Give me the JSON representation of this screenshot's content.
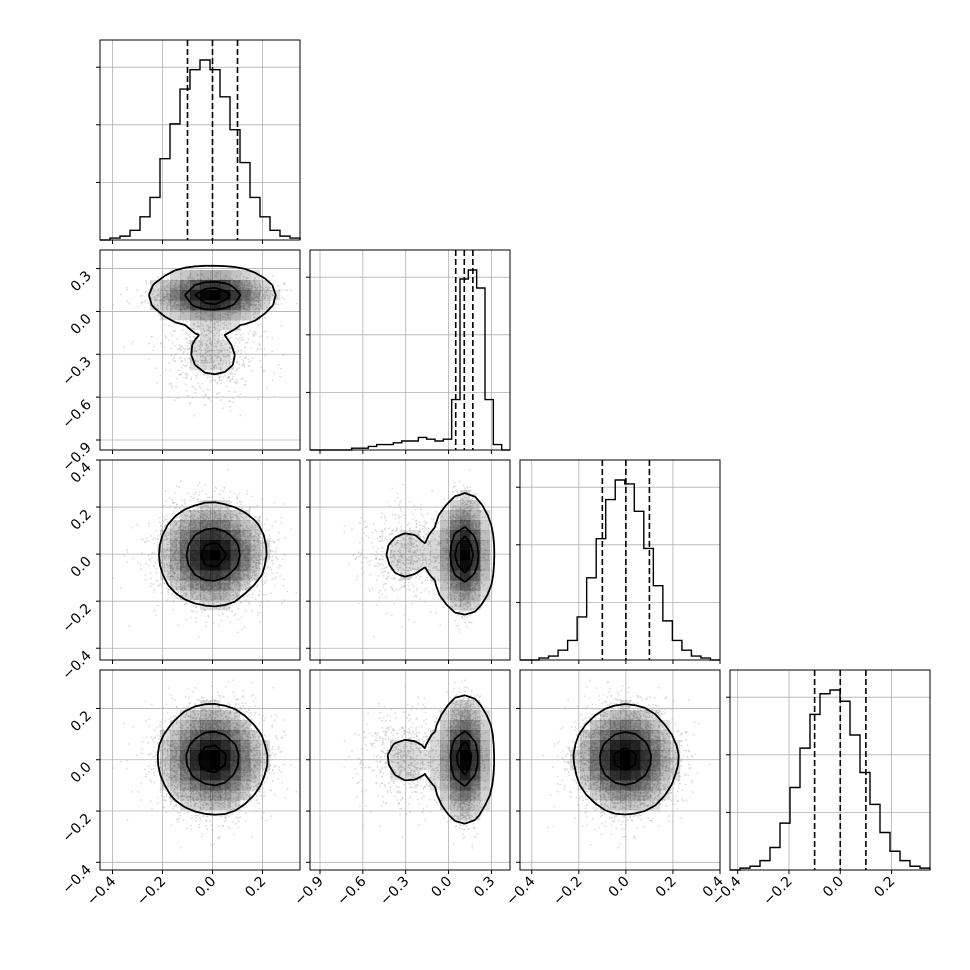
{
  "chart_data": {
    "type": "corner",
    "n_params": 4,
    "colors": {
      "line": "#000000",
      "scatter": "#bdbdbd",
      "density": "#000000",
      "grid": "#b0b0b0"
    },
    "grid": true,
    "axis_ranges": [
      [
        -0.45,
        0.35
      ],
      [
        -0.97,
        0.43
      ],
      [
        -0.45,
        0.4
      ],
      [
        -0.43,
        0.35
      ]
    ],
    "tick_labels": [
      [
        "−0.4",
        "−0.2",
        "0.0",
        "0.2"
      ],
      [
        "−0.9",
        "−0.6",
        "−0.3",
        "0.0",
        "0.3"
      ],
      [
        "−0.4",
        "−0.2",
        "0.0",
        "0.2",
        "0.4"
      ],
      [
        "−0.4",
        "−0.2",
        "0.0",
        "0.2"
      ]
    ],
    "tick_values": [
      [
        -0.4,
        -0.2,
        0.0,
        0.2
      ],
      [
        -0.9,
        -0.6,
        -0.3,
        0.0,
        0.3
      ],
      [
        -0.4,
        -0.2,
        0.0,
        0.2,
        0.4
      ],
      [
        -0.4,
        -0.2,
        0.0,
        0.2
      ]
    ],
    "quantiles": [
      [
        -0.1,
        0.0,
        0.1
      ],
      [
        0.05,
        0.11,
        0.17
      ],
      [
        -0.1,
        0.0,
        0.1
      ],
      [
        -0.1,
        0.0,
        0.1
      ]
    ],
    "histograms": [
      {
        "bins_min": -0.45,
        "bins_max": 0.35,
        "counts": [
          0.0,
          0.01,
          0.02,
          0.05,
          0.12,
          0.22,
          0.42,
          0.6,
          0.78,
          0.88,
          0.93,
          0.88,
          0.74,
          0.57,
          0.4,
          0.22,
          0.12,
          0.05,
          0.02,
          0.01
        ]
      },
      {
        "bins_min": -0.97,
        "bins_max": 0.43,
        "counts": [
          0.0,
          0.0,
          0.0,
          0.0,
          0.0,
          0.01,
          0.01,
          0.02,
          0.03,
          0.03,
          0.04,
          0.05,
          0.05,
          0.07,
          0.06,
          0.05,
          0.06,
          0.28,
          0.95,
          1.0,
          0.9,
          0.28,
          0.03,
          0.0
        ]
      },
      {
        "bins_min": -0.45,
        "bins_max": 0.4,
        "counts": [
          0.0,
          0.0,
          0.01,
          0.02,
          0.05,
          0.1,
          0.22,
          0.42,
          0.62,
          0.82,
          0.92,
          0.9,
          0.76,
          0.57,
          0.38,
          0.2,
          0.1,
          0.05,
          0.02,
          0.01,
          0.0
        ]
      },
      {
        "bins_min": -0.43,
        "bins_max": 0.35,
        "counts": [
          0.0,
          0.01,
          0.02,
          0.05,
          0.12,
          0.25,
          0.44,
          0.65,
          0.83,
          0.94,
          0.96,
          0.9,
          0.72,
          0.52,
          0.35,
          0.2,
          0.1,
          0.05,
          0.02,
          0.01
        ]
      }
    ],
    "samples": {
      "n": 8000,
      "params": [
        {
          "mean": 0.0,
          "sd": 0.1
        },
        {
          "mean": 0.11,
          "sd": 0.05,
          "secondary": {
            "weight": 0.15,
            "mean": -0.3,
            "sd": 0.15
          }
        },
        {
          "mean": 0.0,
          "sd": 0.1
        },
        {
          "mean": 0.0,
          "sd": 0.1
        }
      ]
    }
  }
}
